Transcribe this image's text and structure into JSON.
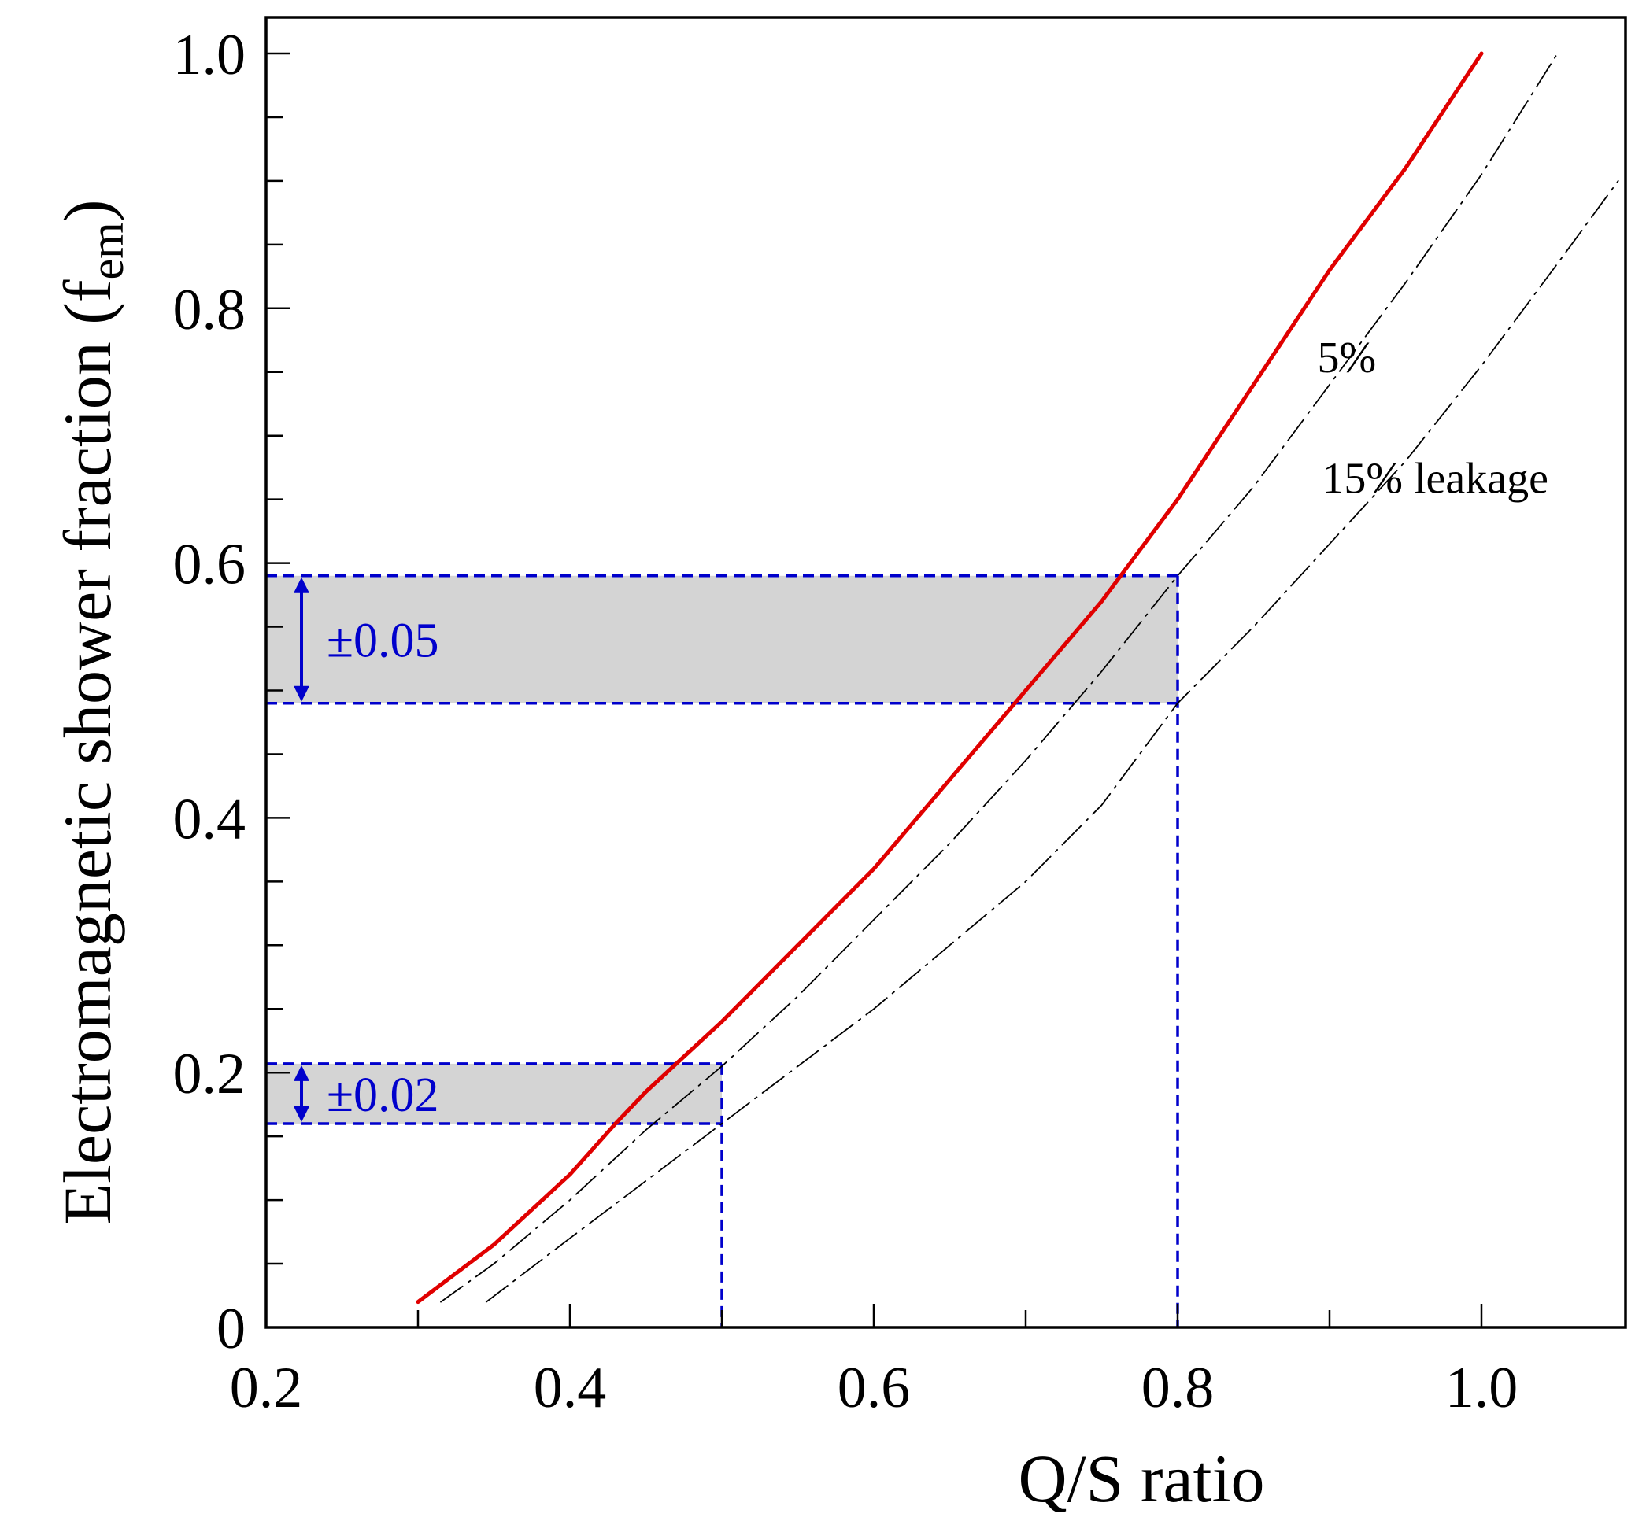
{
  "chart_data": {
    "type": "line",
    "title": "",
    "xlabel": "Q/S ratio",
    "ylabel": {
      "main": "Electromagnetic shower fraction (f",
      "sub": "em",
      "close": ")"
    },
    "xlim": [
      0.2,
      1.1
    ],
    "ylim": [
      0,
      1.0
    ],
    "x_ticks": [
      "0.2",
      "0.4",
      "0.6",
      "0.8",
      "1.0"
    ],
    "y_ticks": [
      "0",
      "0.2",
      "0.4",
      "0.6",
      "0.8",
      "1.0"
    ],
    "grid": false,
    "series": [
      {
        "name": "",
        "color": "#e00000",
        "style": "solid",
        "x": [
          0.3,
          0.35,
          0.4,
          0.43,
          0.45,
          0.5,
          0.55,
          0.6,
          0.65,
          0.7,
          0.75,
          0.8,
          0.85,
          0.9,
          0.95,
          1.0
        ],
        "y": [
          0.02,
          0.065,
          0.12,
          0.16,
          0.185,
          0.24,
          0.3,
          0.36,
          0.43,
          0.5,
          0.57,
          0.65,
          0.74,
          0.83,
          0.91,
          1.0
        ]
      },
      {
        "name": "5%",
        "color": "#000000",
        "style": "dashdot",
        "x": [
          0.315,
          0.35,
          0.4,
          0.45,
          0.5,
          0.55,
          0.6,
          0.65,
          0.7,
          0.75,
          0.8,
          0.85,
          0.9,
          0.95,
          1.0,
          1.05
        ],
        "y": [
          0.02,
          0.05,
          0.1,
          0.155,
          0.205,
          0.26,
          0.32,
          0.38,
          0.445,
          0.515,
          0.59,
          0.66,
          0.74,
          0.82,
          0.905,
          1.0
        ]
      },
      {
        "name": "15% leakage",
        "color": "#000000",
        "style": "dashdot",
        "x": [
          0.345,
          0.4,
          0.45,
          0.5,
          0.55,
          0.6,
          0.65,
          0.7,
          0.75,
          0.8,
          0.85,
          0.9,
          0.95,
          1.0,
          1.05,
          1.09
        ],
        "y": [
          0.02,
          0.07,
          0.115,
          0.16,
          0.205,
          0.25,
          0.3,
          0.35,
          0.41,
          0.49,
          0.55,
          0.615,
          0.68,
          0.755,
          0.835,
          0.9
        ]
      }
    ],
    "bands": [
      {
        "label": "±0.02",
        "y": [
          0.16,
          0.207
        ],
        "x_guide": 0.5,
        "color": "#d4d4d4"
      },
      {
        "label": "±0.05",
        "y": [
          0.49,
          0.59
        ],
        "x_guide": 0.8,
        "color": "#d4d4d4"
      }
    ],
    "annotations": [
      {
        "text": "5%",
        "x": 0.892,
        "y": 0.75
      },
      {
        "text": "15% leakage",
        "x": 0.895,
        "y": 0.655
      }
    ],
    "guide_color": "#0000cc"
  }
}
